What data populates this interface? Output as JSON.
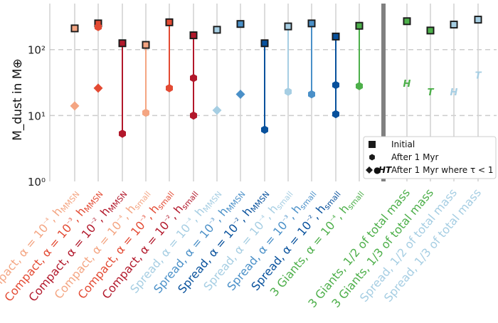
{
  "chart_data": {
    "type": "scatter",
    "ylabel": "M_dust in M⊕",
    "yscale": "log",
    "ylim": [
      1,
      500
    ],
    "yticks": [
      1,
      10,
      100
    ],
    "ytick_labels": [
      "10⁰",
      "10¹",
      "10²"
    ],
    "grid": "horizontal dashed at decades",
    "legend": {
      "position": "lower-right",
      "entries": [
        {
          "marker": "square",
          "label": "Initial"
        },
        {
          "marker": "hexagon",
          "label": "After 1 Myr"
        },
        {
          "marker": "diamond",
          "symbol": "●",
          "letters": "HT",
          "label": "After 1 Myr where τ < 1"
        }
      ]
    },
    "categories": [
      {
        "label": "Compact, α = 10⁻⁴, h_MMSN",
        "color": "#f4a582",
        "initial": 210,
        "after": 210,
        "tau": 14,
        "tau_marker": "diamond"
      },
      {
        "label": "Compact, α = 10⁻³, h_MMSN",
        "color": "#e34a33",
        "initial": 250,
        "after": 220,
        "tau": 26,
        "tau_marker": "diamond"
      },
      {
        "label": "Compact, α = 10⁻², h_MMSN",
        "color": "#b2182b",
        "initial": 125,
        "after": 5.3,
        "tau": null,
        "tau_marker": null
      },
      {
        "label": "Compact, α = 10⁻⁴, h_small",
        "color": "#f4a582",
        "initial": 118,
        "after": 118,
        "tau": 11,
        "tau_marker": "hexagon"
      },
      {
        "label": "Compact, α = 10⁻³, h_small",
        "color": "#e34a33",
        "initial": 260,
        "after": 260,
        "tau": 26,
        "tau_marker": "hexagon"
      },
      {
        "label": "Compact, α = 10⁻², h_small",
        "color": "#b2182b",
        "initial": 165,
        "after": 10,
        "tau": 37,
        "tau_marker": "hexagon"
      },
      {
        "label": "Spread, α = 10⁻⁴, h_MMSN",
        "color": "#a6cee3",
        "initial": 200,
        "after": 200,
        "tau": 12,
        "tau_marker": "diamond"
      },
      {
        "label": "Spread, α = 10⁻³, h_MMSN",
        "color": "#4a90c8",
        "initial": 245,
        "after": 245,
        "tau": 21,
        "tau_marker": "diamond"
      },
      {
        "label": "Spread, α = 10⁻², h_MMSN",
        "color": "#08519c",
        "initial": 125,
        "after": 6.1,
        "tau": null,
        "tau_marker": null
      },
      {
        "label": "Spread, α = 10⁻⁴, h_small",
        "color": "#a6cee3",
        "initial": 225,
        "after": 225,
        "tau": 23,
        "tau_marker": "hexagon"
      },
      {
        "label": "Spread, α = 10⁻³, h_small",
        "color": "#4a90c8",
        "initial": 250,
        "after": 250,
        "tau": 21,
        "tau_marker": "hexagon"
      },
      {
        "label": "Spread, α = 10⁻², h_small",
        "color": "#08519c",
        "initial": 158,
        "after": 10.5,
        "tau": 29,
        "tau_marker": "hexagon"
      },
      {
        "label": "3 Giants, α = 10⁻⁴, h_small",
        "color": "#4daf4a",
        "initial": 230,
        "after": 230,
        "tau": 28,
        "tau_marker": "hexagon"
      },
      {
        "label": "3 Giants, 1/2 of total mass",
        "color": "#4daf4a",
        "initial": 270,
        "after": 270,
        "tau": 31,
        "tau_marker": "letter",
        "tau_letter": "H"
      },
      {
        "label": "3 Giants, 1/3 of total mass",
        "color": "#4daf4a",
        "initial": 195,
        "after": 195,
        "tau": 23,
        "tau_marker": "letter",
        "tau_letter": "T"
      },
      {
        "label": "Spread, 1/2 of total mass",
        "color": "#a6cee3",
        "initial": 240,
        "after": 240,
        "tau": 23,
        "tau_marker": "letter",
        "tau_letter": "H"
      },
      {
        "label": "Spread, 1/3 of total mass",
        "color": "#a6cee3",
        "initial": 285,
        "after": 285,
        "tau": 41,
        "tau_marker": "letter",
        "tau_letter": "T"
      }
    ]
  }
}
